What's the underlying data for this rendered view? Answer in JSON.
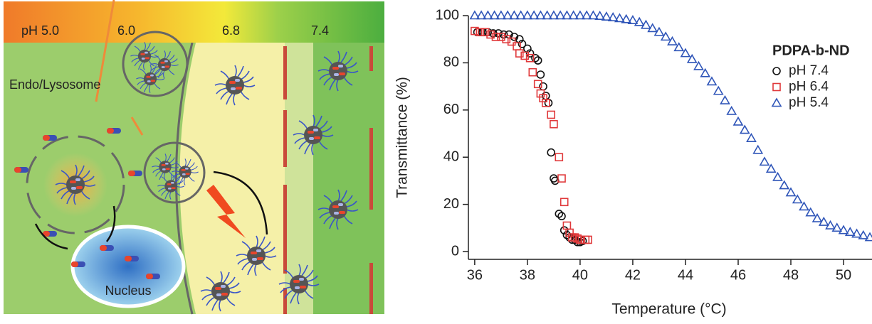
{
  "diagram": {
    "ph_labels": [
      "pH 5.0",
      "6.0",
      "6.8",
      "7.4"
    ],
    "endosome_label": "Endo/Lysosome",
    "nucleus_label": "Nucleus"
  },
  "chart_data": {
    "type": "scatter",
    "xlabel": "Temperature (°C)",
    "ylabel": "Transmittance (%)",
    "legend_title": "PDPA-b-ND",
    "xlim": [
      35.76,
      51.08
    ],
    "ylim": [
      -3.3,
      100
    ],
    "xticks": [
      36,
      38,
      40,
      42,
      44,
      46,
      48,
      50
    ],
    "yticks": [
      0,
      20,
      40,
      60,
      80,
      100
    ],
    "series": [
      {
        "name": "pH 7.4",
        "color": "#111111",
        "marker": "circle",
        "x": [
          36.1,
          36.3,
          36.5,
          36.7,
          36.9,
          37.1,
          37.3,
          37.5,
          37.7,
          37.8,
          38.0,
          38.1,
          38.3,
          38.4,
          38.5,
          38.6,
          38.7,
          38.8,
          38.9,
          39.0,
          39.05,
          39.2,
          39.3,
          39.4,
          39.5,
          39.6,
          39.7,
          39.8,
          39.9,
          40.0,
          40.1
        ],
        "values": [
          93,
          93,
          93,
          92.5,
          92.5,
          92,
          92,
          91,
          90,
          88,
          86,
          84,
          82,
          81,
          75,
          70,
          66,
          63,
          42,
          31,
          30,
          16,
          15,
          9,
          7,
          6,
          5,
          5,
          4,
          4,
          4.5
        ]
      },
      {
        "name": "pH 6.4",
        "color": "#e0393b",
        "marker": "square",
        "x": [
          36.0,
          36.2,
          36.4,
          36.6,
          36.8,
          37.0,
          37.2,
          37.4,
          37.6,
          37.7,
          37.9,
          38.1,
          38.2,
          38.4,
          38.5,
          38.6,
          38.7,
          38.9,
          39.0,
          39.2,
          39.3,
          39.4,
          39.5,
          39.6,
          39.7,
          39.8,
          39.9,
          40.0,
          40.2,
          40.3
        ],
        "values": [
          93.5,
          93,
          93,
          92,
          91,
          91,
          90,
          89,
          87,
          84,
          83,
          82,
          76,
          71,
          67,
          65,
          63,
          58,
          54,
          40,
          31,
          21,
          11,
          8,
          6,
          6,
          5.5,
          5,
          5,
          5
        ]
      },
      {
        "name": "pH 5.4",
        "color": "#2f55b8",
        "marker": "triangle",
        "x": [
          36,
          36.25,
          36.5,
          36.75,
          37,
          37.25,
          37.5,
          37.75,
          38,
          38.25,
          38.5,
          38.75,
          39,
          39.25,
          39.5,
          39.75,
          40,
          40.25,
          40.5,
          40.75,
          41,
          41.25,
          41.5,
          41.75,
          42,
          42.25,
          42.5,
          42.75,
          43,
          43.25,
          43.5,
          43.75,
          44,
          44.25,
          44.5,
          44.75,
          45,
          45.25,
          45.5,
          45.75,
          46,
          46.25,
          46.5,
          46.75,
          47,
          47.25,
          47.5,
          47.75,
          48,
          48.25,
          48.5,
          48.75,
          49,
          49.25,
          49.5,
          49.75,
          50,
          50.25,
          50.5,
          50.75,
          51
        ],
        "values": [
          100,
          100,
          100,
          100,
          100,
          100,
          100,
          100,
          100,
          100,
          100,
          100,
          100,
          100,
          100,
          100,
          100,
          100,
          100,
          99.8,
          99.5,
          99.2,
          98.8,
          98.4,
          98,
          97.2,
          96,
          94.6,
          93,
          91,
          89,
          86.5,
          84,
          81.5,
          78.5,
          75.5,
          72,
          68,
          64,
          59.5,
          55,
          51.5,
          48,
          43,
          38,
          35,
          31.5,
          28,
          25,
          22,
          19,
          16.5,
          14,
          12.5,
          11,
          10,
          9,
          8.2,
          7.5,
          6.8,
          6
        ]
      }
    ]
  }
}
